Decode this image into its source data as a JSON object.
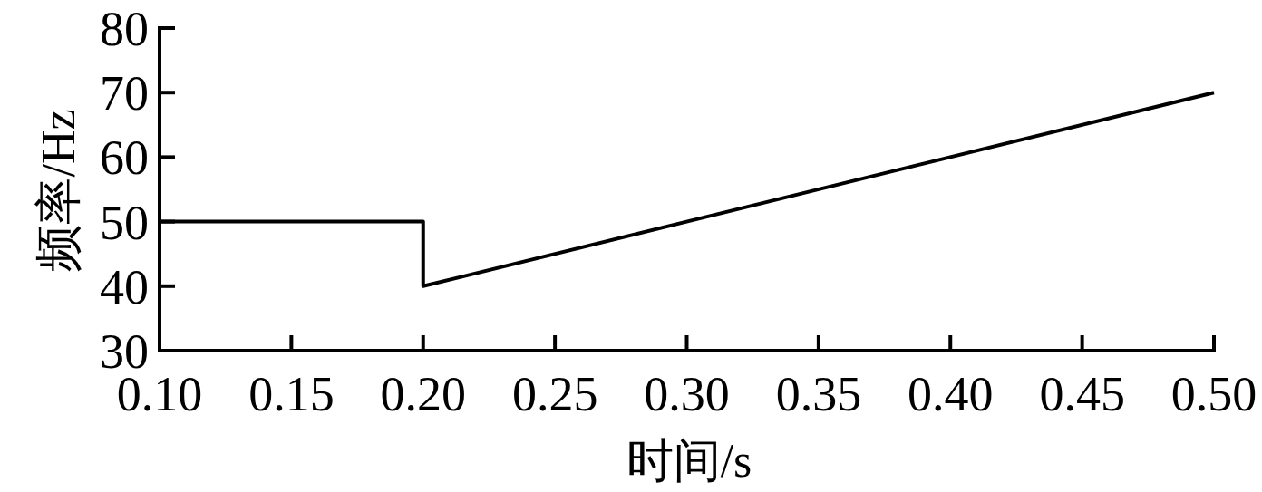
{
  "chart_data": {
    "type": "line",
    "xlabel": "时间/s",
    "ylabel": "频率/Hz",
    "x": [
      0.1,
      0.2,
      0.2,
      0.5
    ],
    "values": [
      50,
      50,
      40,
      70
    ],
    "color": "#000000",
    "xlim": [
      0.1,
      0.5
    ],
    "ylim": [
      30,
      80
    ],
    "xticks": [
      {
        "value": 0.1,
        "label": "0.10"
      },
      {
        "value": 0.15,
        "label": "0.15"
      },
      {
        "value": 0.2,
        "label": "0.20"
      },
      {
        "value": 0.25,
        "label": "0.25"
      },
      {
        "value": 0.3,
        "label": "0.30"
      },
      {
        "value": 0.35,
        "label": "0.35"
      },
      {
        "value": 0.4,
        "label": "0.40"
      },
      {
        "value": 0.45,
        "label": "0.45"
      },
      {
        "value": 0.5,
        "label": "0.50"
      }
    ],
    "yticks": [
      30,
      40,
      50,
      60,
      70,
      80
    ]
  }
}
